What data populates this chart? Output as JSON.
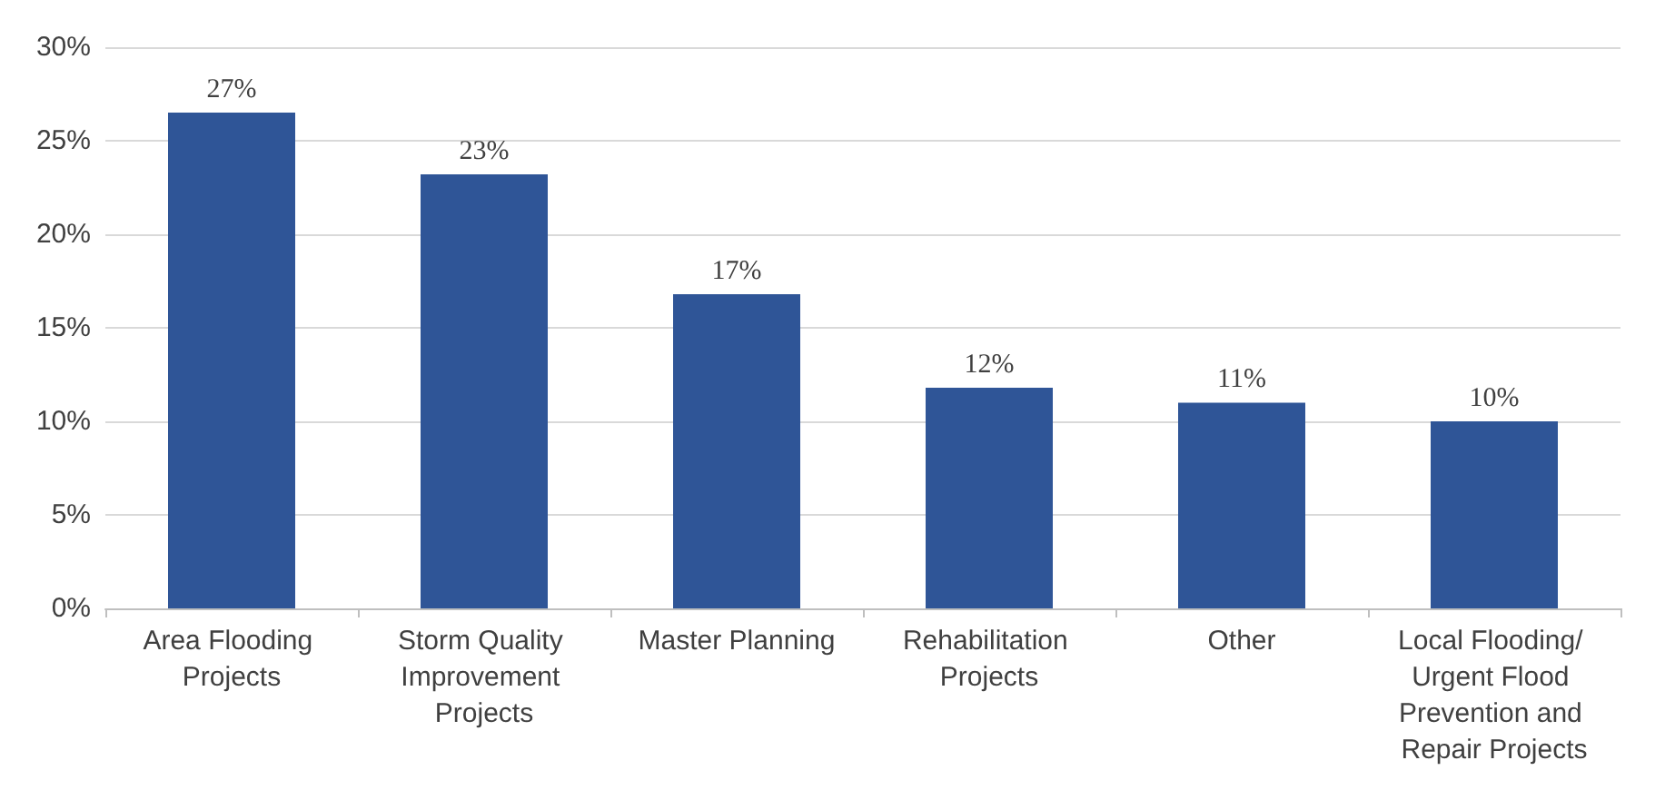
{
  "chart_data": {
    "type": "bar",
    "categories": [
      "Area Flooding Projects",
      "Storm Quality Improvement Projects",
      "Master Planning",
      "Rehabilitation Projects",
      "Other",
      "Local Flooding/ Urgent Flood Prevention and Repair Projects"
    ],
    "values": [
      26.5,
      23.2,
      16.8,
      11.8,
      11.0,
      10.0
    ],
    "value_labels": [
      "27%",
      "23%",
      "17%",
      "12%",
      "11%",
      "10%"
    ],
    "color": "#2f5597",
    "ylim": [
      0,
      30
    ],
    "yticks": [
      {
        "value": 0,
        "label": "0%"
      },
      {
        "value": 5,
        "label": "5%"
      },
      {
        "value": 10,
        "label": "10%"
      },
      {
        "value": 15,
        "label": "15%"
      },
      {
        "value": 20,
        "label": "20%"
      },
      {
        "value": 25,
        "label": "25%"
      },
      {
        "value": 30,
        "label": "30%"
      }
    ],
    "grid": "y"
  }
}
